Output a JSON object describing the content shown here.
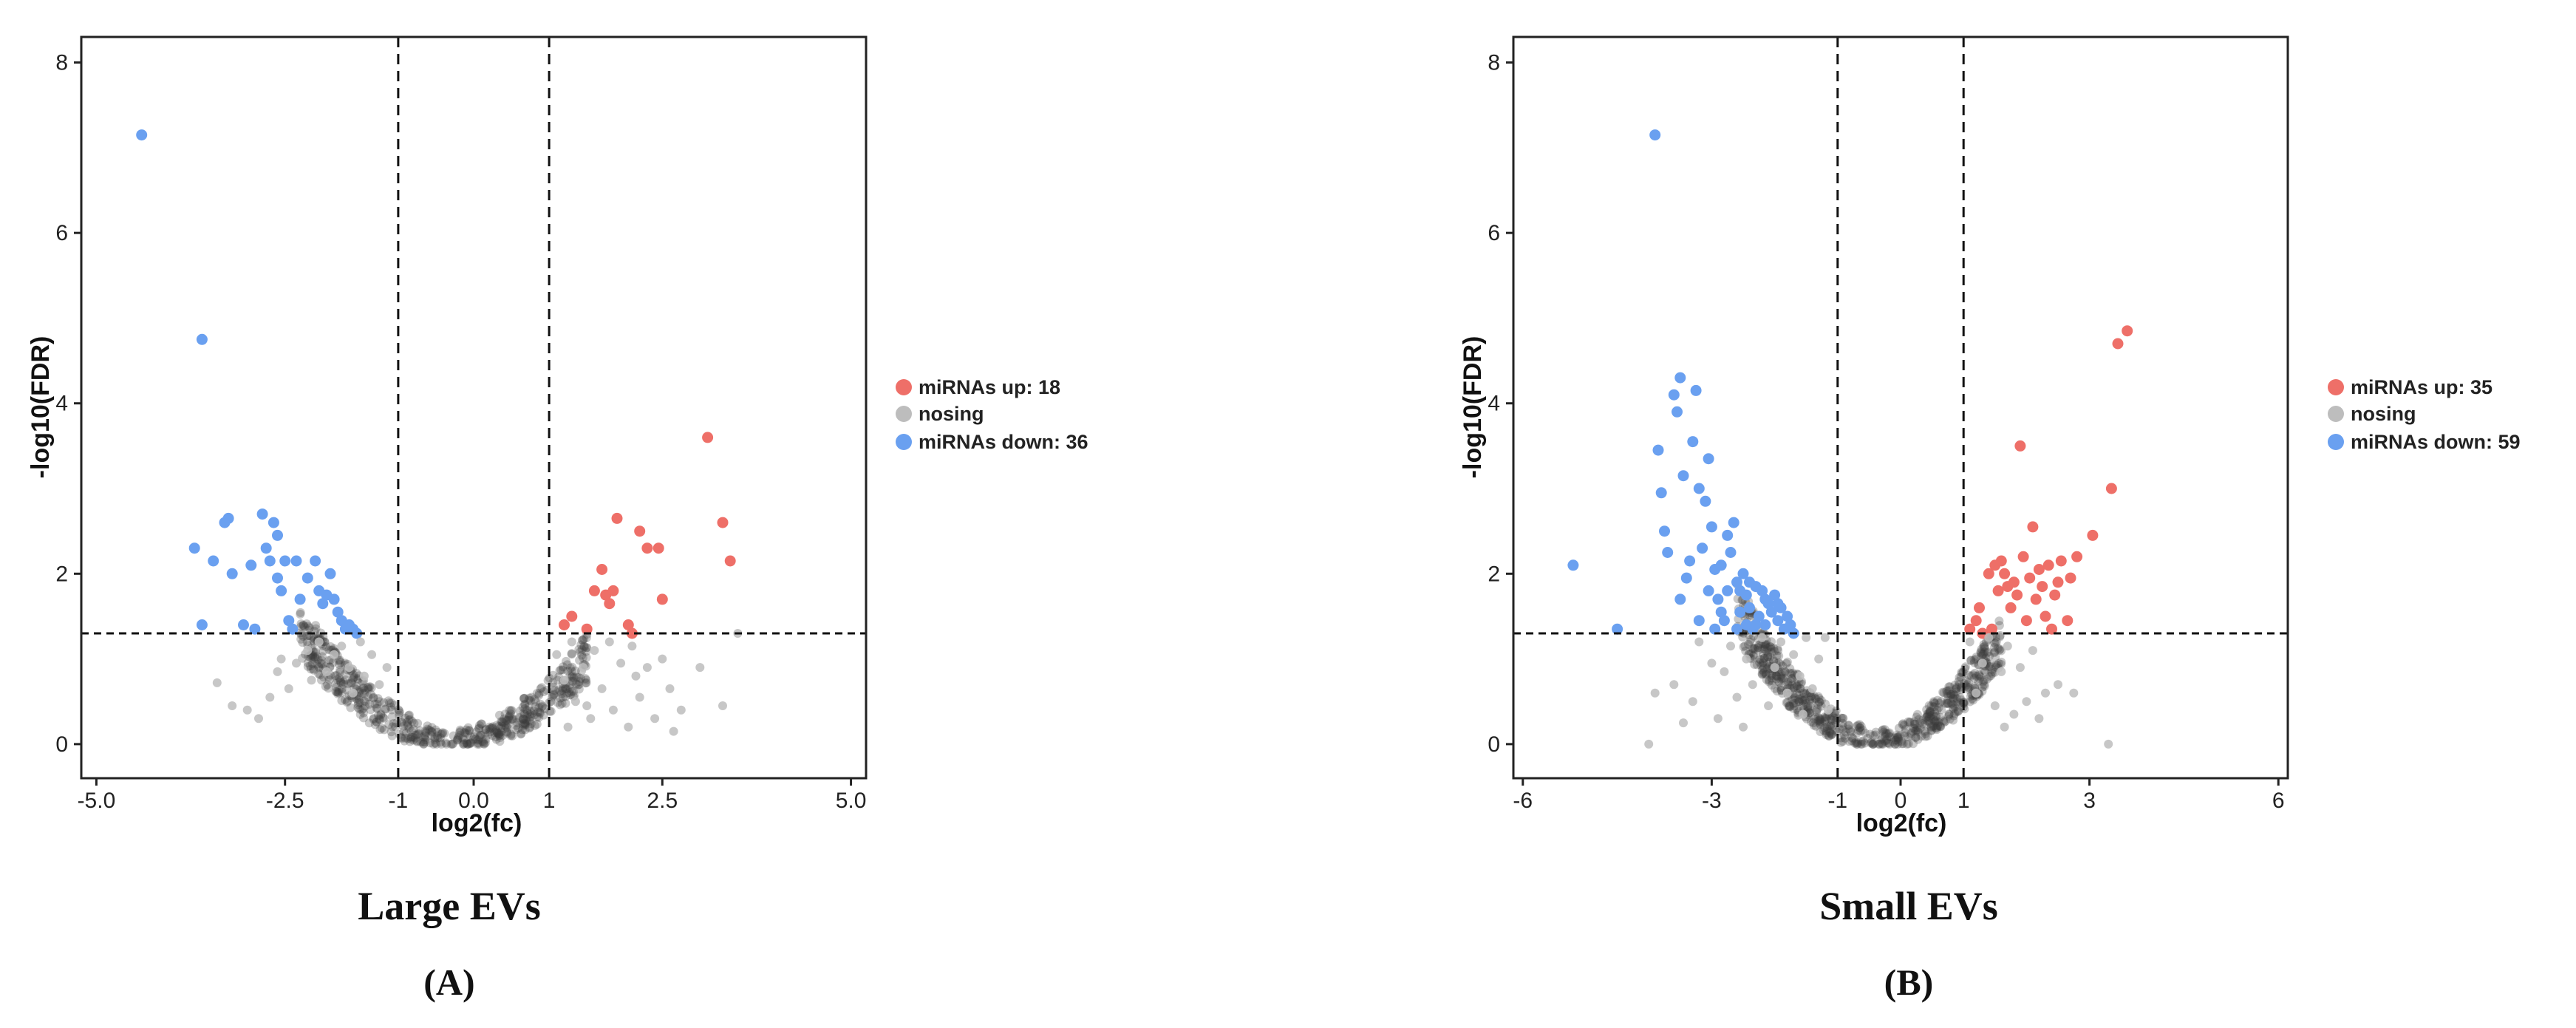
{
  "colors": {
    "up": "#ee6f68",
    "nosig": "#bdbdbd",
    "down": "#6aa0f0",
    "dense": "#3a3a3a"
  },
  "chart_data": [
    {
      "type": "scatter",
      "panel_title": "Large EVs",
      "panel_letter": "(A)",
      "xlabel": "log2(fc)",
      "ylabel": "-log10(FDR)",
      "xlim": [
        -5.2,
        5.2
      ],
      "ylim": [
        -0.4,
        8.3
      ],
      "x_ticks": [
        -5.0,
        -2.5,
        0.0,
        2.5,
        5.0
      ],
      "x_tick_labels": [
        "-5.0",
        "-2.5",
        "0.0",
        "2.5",
        "5.0"
      ],
      "x_extra_labels": [
        {
          "x": -1,
          "label": "-1"
        },
        {
          "x": 1,
          "label": "1"
        }
      ],
      "y_ticks": [
        0,
        2,
        4,
        6,
        8
      ],
      "y_tick_labels": [
        "0",
        "2",
        "4",
        "6",
        "8"
      ],
      "thresholds": {
        "vlines": [
          -1,
          1
        ],
        "hline": 1.3
      },
      "legend": [
        {
          "key": "up",
          "label": "miRNAs up: 18"
        },
        {
          "key": "nosig",
          "label": "nosing"
        },
        {
          "key": "down",
          "label": "miRNAs down: 36"
        }
      ],
      "series": [
        {
          "name": "miRNAs up",
          "key": "up",
          "points": [
            [
              1.2,
              1.4
            ],
            [
              1.3,
              1.5
            ],
            [
              1.5,
              1.35
            ],
            [
              1.6,
              1.8
            ],
            [
              1.7,
              2.05
            ],
            [
              1.75,
              1.75
            ],
            [
              1.8,
              1.65
            ],
            [
              1.85,
              1.8
            ],
            [
              1.9,
              2.65
            ],
            [
              2.05,
              1.4
            ],
            [
              2.1,
              1.3
            ],
            [
              2.2,
              2.5
            ],
            [
              2.3,
              2.3
            ],
            [
              2.45,
              2.3
            ],
            [
              2.5,
              1.7
            ],
            [
              3.1,
              3.6
            ],
            [
              3.3,
              2.6
            ],
            [
              3.4,
              2.15
            ]
          ]
        },
        {
          "name": "miRNAs down",
          "key": "down",
          "points": [
            [
              -4.4,
              7.15
            ],
            [
              -3.6,
              4.75
            ],
            [
              -3.7,
              2.3
            ],
            [
              -3.6,
              1.4
            ],
            [
              -3.45,
              2.15
            ],
            [
              -3.3,
              2.6
            ],
            [
              -3.25,
              2.65
            ],
            [
              -3.2,
              2.0
            ],
            [
              -3.05,
              1.4
            ],
            [
              -2.9,
              1.35
            ],
            [
              -2.8,
              2.7
            ],
            [
              -2.75,
              2.3
            ],
            [
              -2.7,
              2.15
            ],
            [
              -2.65,
              2.6
            ],
            [
              -2.6,
              1.95
            ],
            [
              -2.55,
              1.8
            ],
            [
              -2.5,
              2.15
            ],
            [
              -2.45,
              1.45
            ],
            [
              -2.4,
              1.35
            ],
            [
              -2.35,
              2.15
            ],
            [
              -2.3,
              1.7
            ],
            [
              -2.2,
              1.95
            ],
            [
              -2.1,
              2.15
            ],
            [
              -2.05,
              1.8
            ],
            [
              -2.0,
              1.65
            ],
            [
              -1.95,
              1.75
            ],
            [
              -1.9,
              2.0
            ],
            [
              -1.85,
              1.7
            ],
            [
              -1.8,
              1.55
            ],
            [
              -1.75,
              1.45
            ],
            [
              -1.7,
              1.35
            ],
            [
              -1.65,
              1.4
            ],
            [
              -1.6,
              1.35
            ],
            [
              -1.55,
              1.3
            ],
            [
              -2.6,
              2.45
            ],
            [
              -2.95,
              2.1
            ]
          ]
        },
        {
          "name": "nosing",
          "key": "nosig",
          "points": [
            [
              -3.4,
              0.72
            ],
            [
              -3.2,
              0.45
            ],
            [
              -3.0,
              0.4
            ],
            [
              -2.85,
              0.3
            ],
            [
              -2.7,
              0.55
            ],
            [
              -2.6,
              0.85
            ],
            [
              -2.55,
              1.0
            ],
            [
              -2.45,
              0.65
            ],
            [
              -2.35,
              0.95
            ],
            [
              -2.2,
              1.1
            ],
            [
              -2.15,
              0.75
            ],
            [
              -2.05,
              1.2
            ],
            [
              -1.95,
              0.85
            ],
            [
              -1.85,
              1.05
            ],
            [
              -1.75,
              1.15
            ],
            [
              -1.65,
              0.9
            ],
            [
              -1.6,
              0.6
            ],
            [
              -1.5,
              1.2
            ],
            [
              -1.45,
              0.8
            ],
            [
              -1.35,
              1.05
            ],
            [
              -1.25,
              0.7
            ],
            [
              -1.15,
              0.9
            ],
            [
              1.1,
              1.05
            ],
            [
              1.2,
              0.75
            ],
            [
              1.3,
              1.2
            ],
            [
              1.35,
              0.5
            ],
            [
              1.45,
              0.9
            ],
            [
              1.55,
              0.3
            ],
            [
              1.6,
              1.1
            ],
            [
              1.7,
              0.65
            ],
            [
              1.8,
              1.2
            ],
            [
              1.85,
              0.4
            ],
            [
              1.95,
              0.95
            ],
            [
              2.05,
              0.2
            ],
            [
              2.1,
              1.15
            ],
            [
              2.2,
              0.55
            ],
            [
              2.3,
              0.9
            ],
            [
              2.4,
              0.3
            ],
            [
              2.5,
              1.0
            ],
            [
              2.6,
              0.65
            ],
            [
              2.75,
              0.4
            ],
            [
              3.0,
              0.9
            ],
            [
              3.3,
              0.45
            ],
            [
              3.5,
              1.3
            ],
            [
              2.15,
              0.8
            ],
            [
              1.5,
              0.45
            ],
            [
              1.25,
              0.2
            ],
            [
              2.65,
              0.15
            ]
          ]
        }
      ],
      "dense_cloud": {
        "shape": "parabola",
        "x_center": -0.25,
        "x_range": [
          -2.3,
          1.5
        ],
        "points_approx": 600
      }
    },
    {
      "type": "scatter",
      "panel_title": "Small EVs",
      "panel_letter": "(B)",
      "xlabel": "log2(fc)",
      "ylabel": "-log10(FDR)",
      "xlim": [
        -6.15,
        6.15
      ],
      "ylim": [
        -0.4,
        8.3
      ],
      "x_ticks": [
        -6,
        -3,
        0,
        3,
        6
      ],
      "x_tick_labels": [
        "-6",
        "-3",
        "0",
        "3",
        "6"
      ],
      "x_extra_labels": [
        {
          "x": -1,
          "label": "-1"
        },
        {
          "x": 1,
          "label": "1"
        }
      ],
      "y_ticks": [
        0,
        2,
        4,
        6,
        8
      ],
      "y_tick_labels": [
        "0",
        "2",
        "4",
        "6",
        "8"
      ],
      "thresholds": {
        "vlines": [
          -1,
          1
        ],
        "hline": 1.3
      },
      "legend": [
        {
          "key": "up",
          "label": "miRNAs up: 35"
        },
        {
          "key": "nosig",
          "label": "nosing"
        },
        {
          "key": "down",
          "label": "miRNAs down: 59"
        }
      ],
      "series": [
        {
          "name": "miRNAs up",
          "key": "up",
          "points": [
            [
              1.1,
              1.35
            ],
            [
              1.2,
              1.45
            ],
            [
              1.3,
              1.3
            ],
            [
              1.4,
              2.0
            ],
            [
              1.5,
              2.1
            ],
            [
              1.55,
              1.8
            ],
            [
              1.6,
              2.15
            ],
            [
              1.7,
              1.85
            ],
            [
              1.75,
              1.6
            ],
            [
              1.8,
              1.9
            ],
            [
              1.85,
              1.75
            ],
            [
              1.9,
              3.5
            ],
            [
              1.95,
              2.2
            ],
            [
              2.0,
              1.45
            ],
            [
              2.05,
              1.95
            ],
            [
              2.1,
              2.55
            ],
            [
              2.15,
              1.7
            ],
            [
              2.2,
              2.05
            ],
            [
              2.25,
              1.85
            ],
            [
              2.3,
              1.5
            ],
            [
              2.35,
              2.1
            ],
            [
              2.4,
              1.35
            ],
            [
              2.5,
              1.9
            ],
            [
              2.55,
              2.15
            ],
            [
              2.65,
              1.45
            ],
            [
              2.7,
              1.95
            ],
            [
              2.8,
              2.2
            ],
            [
              3.05,
              2.45
            ],
            [
              3.35,
              3.0
            ],
            [
              3.45,
              4.7
            ],
            [
              3.6,
              4.85
            ],
            [
              1.25,
              1.6
            ],
            [
              1.65,
              2.0
            ],
            [
              2.45,
              1.75
            ],
            [
              1.45,
              1.35
            ]
          ]
        },
        {
          "name": "miRNAs down",
          "key": "down",
          "points": [
            [
              -5.2,
              2.1
            ],
            [
              -4.5,
              1.35
            ],
            [
              -3.9,
              7.15
            ],
            [
              -3.85,
              3.45
            ],
            [
              -3.8,
              2.95
            ],
            [
              -3.75,
              2.5
            ],
            [
              -3.7,
              2.25
            ],
            [
              -3.6,
              4.1
            ],
            [
              -3.55,
              3.9
            ],
            [
              -3.5,
              4.3
            ],
            [
              -3.45,
              3.15
            ],
            [
              -3.4,
              1.95
            ],
            [
              -3.3,
              3.55
            ],
            [
              -3.25,
              4.15
            ],
            [
              -3.2,
              3.0
            ],
            [
              -3.15,
              2.3
            ],
            [
              -3.1,
              2.85
            ],
            [
              -3.05,
              3.35
            ],
            [
              -3.0,
              2.55
            ],
            [
              -2.95,
              2.05
            ],
            [
              -2.9,
              1.7
            ],
            [
              -2.85,
              2.1
            ],
            [
              -2.8,
              1.45
            ],
            [
              -2.75,
              1.8
            ],
            [
              -2.7,
              2.25
            ],
            [
              -2.65,
              2.6
            ],
            [
              -2.6,
              1.9
            ],
            [
              -2.55,
              1.55
            ],
            [
              -2.5,
              2.0
            ],
            [
              -2.45,
              1.75
            ],
            [
              -2.4,
              1.6
            ],
            [
              -2.35,
              1.35
            ],
            [
              -2.3,
              1.85
            ],
            [
              -2.25,
              1.5
            ],
            [
              -2.2,
              1.8
            ],
            [
              -2.15,
              1.4
            ],
            [
              -2.1,
              1.65
            ],
            [
              -2.05,
              1.55
            ],
            [
              -2.0,
              1.75
            ],
            [
              -1.95,
              1.45
            ],
            [
              -1.9,
              1.6
            ],
            [
              -1.85,
              1.35
            ],
            [
              -1.8,
              1.5
            ],
            [
              -1.75,
              1.4
            ],
            [
              -1.7,
              1.3
            ],
            [
              -3.35,
              2.15
            ],
            [
              -2.95,
              1.35
            ],
            [
              -2.6,
              1.35
            ],
            [
              -2.75,
              2.45
            ],
            [
              -2.45,
              1.4
            ],
            [
              -2.15,
              1.7
            ],
            [
              -3.2,
              1.45
            ],
            [
              -2.85,
              1.55
            ],
            [
              -3.05,
              1.8
            ],
            [
              -2.3,
              1.4
            ],
            [
              -1.95,
              1.65
            ],
            [
              -2.55,
              1.8
            ],
            [
              -2.4,
              1.9
            ],
            [
              -3.5,
              1.7
            ]
          ]
        },
        {
          "name": "nosing",
          "key": "nosig",
          "points": [
            [
              -3.9,
              0.6
            ],
            [
              -3.6,
              0.7
            ],
            [
              -3.3,
              0.5
            ],
            [
              -3.2,
              1.2
            ],
            [
              -3.0,
              0.95
            ],
            [
              -2.9,
              0.3
            ],
            [
              -2.8,
              0.85
            ],
            [
              -2.7,
              1.15
            ],
            [
              -2.6,
              0.55
            ],
            [
              -2.45,
              1.0
            ],
            [
              -2.35,
              0.7
            ],
            [
              -2.2,
              1.25
            ],
            [
              -2.1,
              0.45
            ],
            [
              -2.0,
              0.9
            ],
            [
              -1.9,
              1.2
            ],
            [
              -1.8,
              0.6
            ],
            [
              -1.7,
              1.05
            ],
            [
              -1.6,
              0.8
            ],
            [
              -1.5,
              1.25
            ],
            [
              -1.4,
              0.65
            ],
            [
              -1.3,
              1.0
            ],
            [
              -1.2,
              1.25
            ],
            [
              -1.15,
              0.4
            ],
            [
              1.1,
              1.2
            ],
            [
              1.2,
              0.6
            ],
            [
              1.3,
              0.95
            ],
            [
              1.4,
              1.25
            ],
            [
              1.5,
              0.45
            ],
            [
              1.6,
              0.85
            ],
            [
              1.7,
              1.15
            ],
            [
              1.8,
              0.35
            ],
            [
              1.9,
              0.9
            ],
            [
              2.0,
              0.5
            ],
            [
              2.1,
              1.1
            ],
            [
              2.3,
              0.6
            ],
            [
              2.5,
              0.7
            ],
            [
              2.75,
              0.6
            ],
            [
              3.3,
              0.0
            ],
            [
              -4.0,
              0.0
            ],
            [
              -3.45,
              0.25
            ],
            [
              -2.5,
              0.2
            ],
            [
              1.65,
              0.2
            ],
            [
              2.2,
              0.3
            ],
            [
              -1.55,
              0.35
            ]
          ]
        }
      ],
      "dense_cloud": {
        "shape": "parabola",
        "x_center": -0.35,
        "x_range": [
          -2.6,
          1.6
        ],
        "points_approx": 700
      }
    }
  ]
}
